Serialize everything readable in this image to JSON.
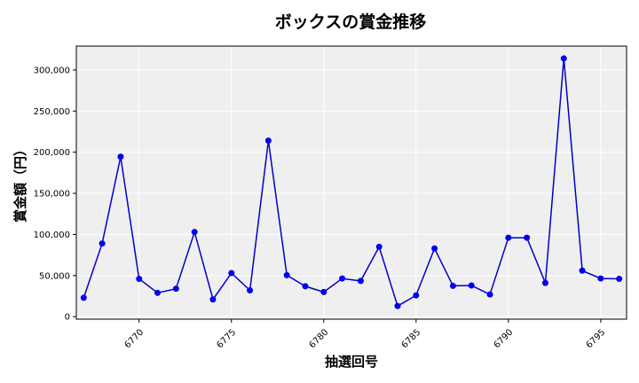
{
  "chart_data": {
    "type": "line",
    "title": "ボックスの賞金推移",
    "xlabel": "抽選回号",
    "ylabel": "賞金額（円）",
    "x": [
      6767,
      6768,
      6769,
      6770,
      6771,
      6772,
      6773,
      6774,
      6775,
      6776,
      6777,
      6778,
      6779,
      6780,
      6781,
      6782,
      6783,
      6784,
      6785,
      6786,
      6787,
      6788,
      6789,
      6790,
      6791,
      6792,
      6793,
      6794,
      6795,
      6796
    ],
    "y": [
      23000,
      89000,
      194500,
      46000,
      29000,
      34000,
      103000,
      21000,
      53000,
      32000,
      214000,
      50500,
      37000,
      30000,
      46500,
      43500,
      85000,
      13000,
      26000,
      83000,
      37500,
      38000,
      27000,
      96000,
      96000,
      41000,
      314000,
      56000,
      46500,
      46000
    ],
    "xlim": [
      6766.6,
      6796.4
    ],
    "ylim": [
      -3000,
      329000
    ],
    "xticks": [
      6770,
      6775,
      6780,
      6785,
      6790,
      6795
    ],
    "yticks": [
      0,
      50000,
      100000,
      150000,
      200000,
      250000,
      300000
    ],
    "xtick_labels": [
      "6770",
      "6775",
      "6780",
      "6785",
      "6790",
      "6795"
    ],
    "ytick_labels": [
      "0",
      "50,000",
      "100,000",
      "150,000",
      "200,000",
      "250,000",
      "300,000"
    ],
    "grid": true,
    "line_color": "#0000cc",
    "marker_color": "#0000ee",
    "plot_bg": "#efefef",
    "grid_color": "#ffffff"
  }
}
